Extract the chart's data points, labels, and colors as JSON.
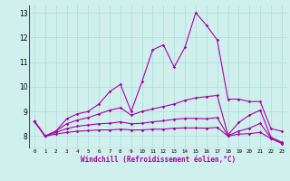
{
  "xlabel": "Windchill (Refroidissement éolien,°C)",
  "xlim": [
    -0.5,
    23.5
  ],
  "ylim": [
    7.5,
    13.3
  ],
  "xticks": [
    0,
    1,
    2,
    3,
    4,
    5,
    6,
    7,
    8,
    9,
    10,
    11,
    12,
    13,
    14,
    15,
    16,
    17,
    18,
    19,
    20,
    21,
    22,
    23
  ],
  "yticks": [
    8,
    9,
    10,
    11,
    12,
    13
  ],
  "background_color": "#cff0ec",
  "line_color": "#aa00aa",
  "grid_color": "#aaddda",
  "line1": [
    8.6,
    8.0,
    8.2,
    8.7,
    8.9,
    9.0,
    9.3,
    9.8,
    10.1,
    9.0,
    10.2,
    11.5,
    11.7,
    10.8,
    11.6,
    13.0,
    12.5,
    11.9,
    9.5,
    9.5,
    9.4,
    9.4,
    8.3,
    8.2
  ],
  "line2": [
    8.6,
    8.0,
    8.2,
    8.5,
    8.65,
    8.75,
    8.9,
    9.05,
    9.15,
    8.85,
    9.0,
    9.1,
    9.2,
    9.3,
    9.45,
    9.55,
    9.6,
    9.65,
    8.05,
    8.55,
    8.85,
    9.05,
    7.95,
    7.75
  ],
  "line3": [
    8.6,
    8.0,
    8.15,
    8.3,
    8.4,
    8.45,
    8.5,
    8.52,
    8.58,
    8.5,
    8.52,
    8.58,
    8.62,
    8.68,
    8.72,
    8.72,
    8.7,
    8.75,
    8.02,
    8.2,
    8.32,
    8.52,
    7.92,
    7.72
  ],
  "line4": [
    8.6,
    8.0,
    8.08,
    8.15,
    8.2,
    8.22,
    8.25,
    8.25,
    8.28,
    8.25,
    8.25,
    8.28,
    8.28,
    8.32,
    8.33,
    8.33,
    8.32,
    8.35,
    8.0,
    8.08,
    8.1,
    8.15,
    7.9,
    7.7
  ]
}
